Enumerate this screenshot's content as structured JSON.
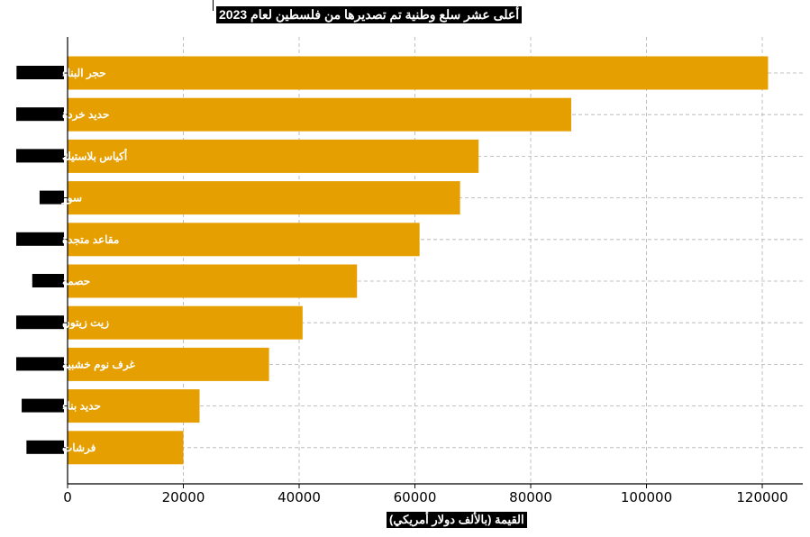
{
  "chart_data": {
    "type": "bar",
    "orientation": "horizontal",
    "title": "أعلى عشر سلع وطنية تم تصديرها من فلسطين لعام 2023",
    "xlabel": "القيمة (بالألف دولار أمريكي)",
    "ylabel": "",
    "categories": [
      "حجر البناء",
      "حديد خردة",
      "أكياس بلاستيك",
      "سور",
      "مقاعد متجدة",
      "حصمة",
      "زيت زيتون",
      "غرف نوم خشبية",
      "حديد بناء",
      "فرشات"
    ],
    "values": [
      121000,
      87000,
      71000,
      67800,
      60800,
      50000,
      40600,
      34800,
      22800,
      20000
    ],
    "xlim": [
      0,
      127000
    ],
    "xticks": [
      0,
      20000,
      40000,
      60000,
      80000,
      100000,
      120000
    ],
    "grid": true,
    "bar_color": "#E69F00"
  }
}
